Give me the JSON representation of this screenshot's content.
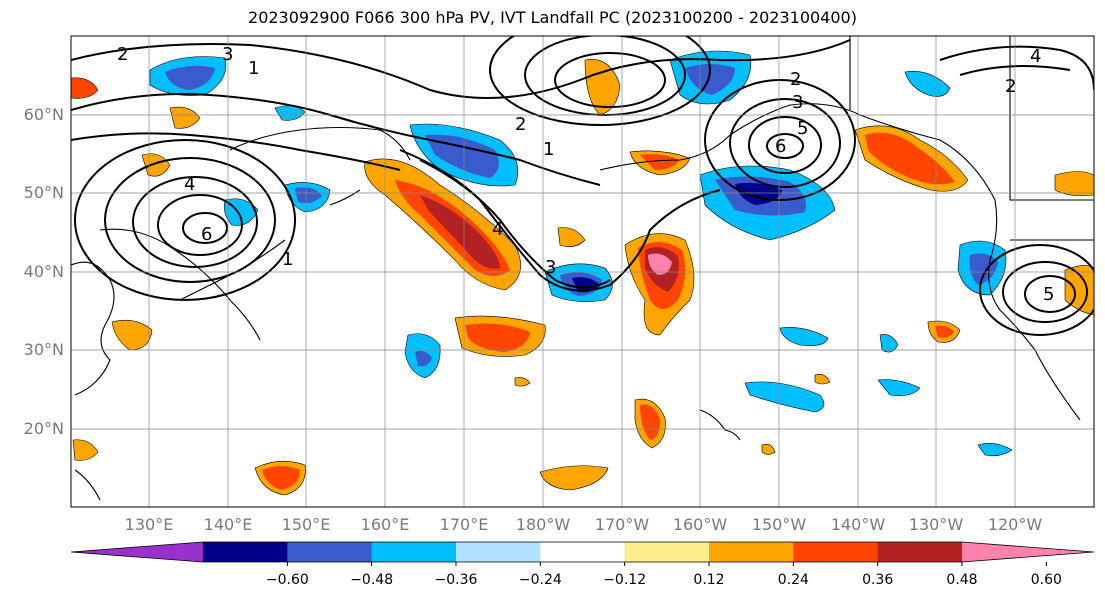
{
  "title": "2023092900 F066 300 hPa PV, IVT Landfall PC (2023100200 - 2023100400)",
  "lat_labels": [
    "60°N",
    "50°N",
    "40°N",
    "30°N",
    "20°N"
  ],
  "lon_labels": [
    "130°E",
    "140°E",
    "150°E",
    "160°E",
    "170°E",
    "180°W",
    "170°W",
    "160°W",
    "150°W",
    "140°W",
    "130°W",
    "120°W"
  ],
  "contour_labels": [
    "1",
    "2",
    "3",
    "4",
    "5",
    "6"
  ],
  "colorbar": {
    "ticks": [
      "−0.60",
      "−0.48",
      "−0.36",
      "−0.24",
      "−0.12",
      "0.12",
      "0.24",
      "0.36",
      "0.48",
      "0.60"
    ],
    "colors": [
      "#9932cc",
      "#00008b",
      "#3a5bcc",
      "#00bfff",
      "#b0e2ff",
      "#ffffff",
      "#ffec8b",
      "#ffa500",
      "#ff4500",
      "#b22222",
      "#ff82ab"
    ]
  }
}
